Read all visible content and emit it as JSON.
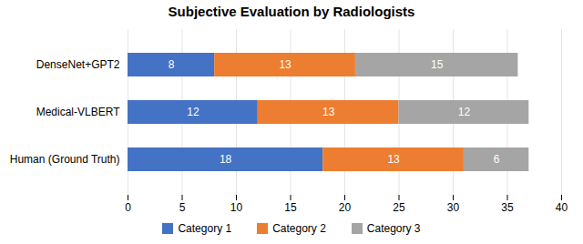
{
  "chart_data": {
    "type": "bar",
    "orientation": "horizontal",
    "stacked": true,
    "title": "Subjective Evaluation by Radiologists",
    "categories": [
      "Human (Ground Truth)",
      "Medical-VLBERT",
      "DenseNet+GPT2"
    ],
    "series": [
      {
        "name": "Category 1",
        "color": "#4472C4",
        "values": [
          18,
          12,
          8
        ]
      },
      {
        "name": "Category 2",
        "color": "#ED7D31",
        "values": [
          13,
          13,
          13
        ]
      },
      {
        "name": "Category 3",
        "color": "#A5A5A5",
        "values": [
          6,
          12,
          15
        ]
      }
    ],
    "xlim": [
      0,
      40
    ],
    "xticks": [
      0,
      5,
      10,
      15,
      20,
      25,
      30,
      35,
      40
    ],
    "grid": true,
    "data_labels": true,
    "legend": "bottom"
  }
}
